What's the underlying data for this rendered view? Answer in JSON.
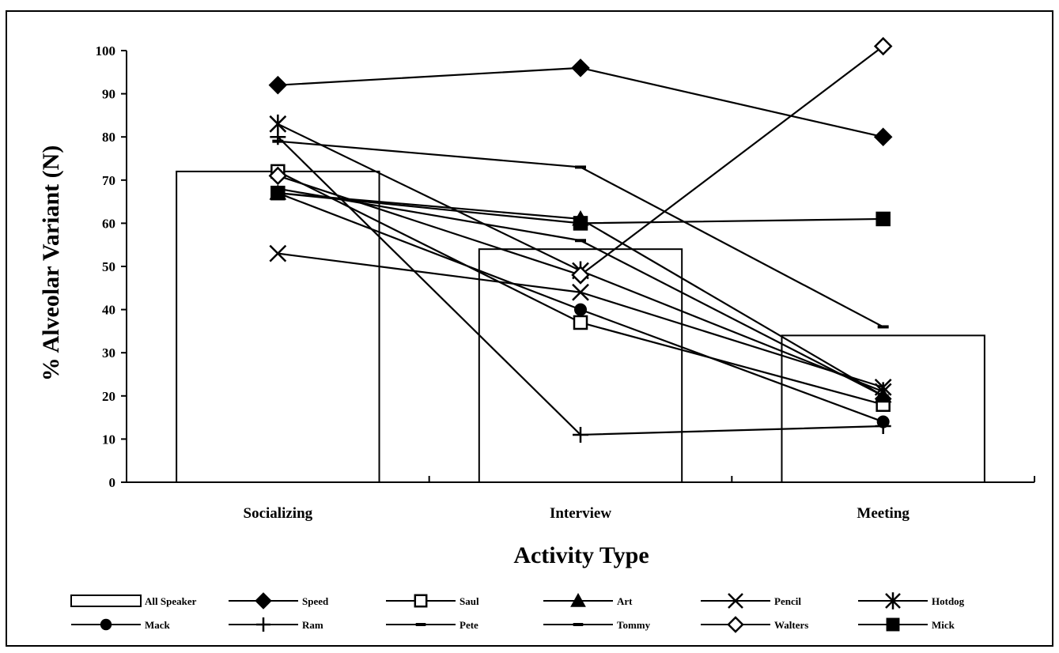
{
  "chart_data": {
    "type": "bar",
    "title": "",
    "xlabel": "Activity Type",
    "ylabel": "% Alveolar Variant (N)",
    "categories": [
      "Socializing",
      "Interview",
      "Meeting"
    ],
    "ylim": [
      0,
      100
    ],
    "yticks": [
      0,
      10,
      20,
      30,
      40,
      50,
      60,
      70,
      80,
      90,
      100
    ],
    "grid": false,
    "legend_position": "bottom",
    "bars": {
      "name": "All Speaker",
      "values": [
        72,
        54,
        34
      ]
    },
    "series": [
      {
        "name": "Speed",
        "marker": "diamond-filled",
        "values": [
          92,
          96,
          80
        ]
      },
      {
        "name": "Saul",
        "marker": "square-open",
        "values": [
          72,
          37,
          18
        ]
      },
      {
        "name": "Art",
        "marker": "triangle-filled",
        "values": [
          67,
          61,
          20
        ]
      },
      {
        "name": "Pencil",
        "marker": "x",
        "values": [
          53,
          44,
          22
        ]
      },
      {
        "name": "Hotdog",
        "marker": "asterisk",
        "values": [
          83,
          49,
          21
        ]
      },
      {
        "name": "Mack",
        "marker": "circle-filled",
        "values": [
          67,
          40,
          14
        ]
      },
      {
        "name": "Ram",
        "marker": "plus",
        "values": [
          80,
          11,
          13
        ]
      },
      {
        "name": "Pete",
        "marker": "dash",
        "values": [
          68,
          56,
          20
        ]
      },
      {
        "name": "Tommy",
        "marker": "dash",
        "values": [
          79,
          73,
          36
        ]
      },
      {
        "name": "Walters",
        "marker": "diamond-open",
        "values": [
          71,
          48,
          101
        ]
      },
      {
        "name": "Mick",
        "marker": "square-filled",
        "values": [
          67,
          60,
          61
        ]
      }
    ]
  }
}
